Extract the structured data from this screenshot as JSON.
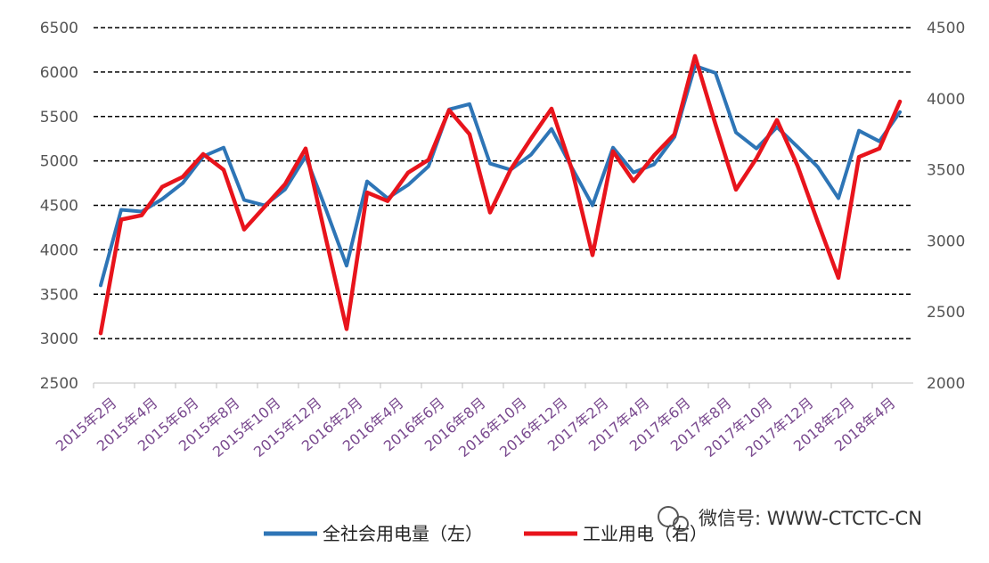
{
  "chart_data": {
    "type": "line",
    "categories": [
      "2015年2月",
      "2015年3月",
      "2015年4月",
      "2015年5月",
      "2015年6月",
      "2015年7月",
      "2015年8月",
      "2015年9月",
      "2015年10月",
      "2015年11月",
      "2015年12月",
      "2016年1月",
      "2016年2月",
      "2016年3月",
      "2016年4月",
      "2016年5月",
      "2016年6月",
      "2016年7月",
      "2016年8月",
      "2016年9月",
      "2016年10月",
      "2016年11月",
      "2016年12月",
      "2017年1月",
      "2017年2月",
      "2017年3月",
      "2017年4月",
      "2017年5月",
      "2017年6月",
      "2017年7月",
      "2017年8月",
      "2017年9月",
      "2017年10月",
      "2017年11月",
      "2017年12月",
      "2018年1月",
      "2018年2月",
      "2018年3月",
      "2018年4月",
      "2018年5月"
    ],
    "x_tick_labels": [
      "2015年2月",
      "2015年4月",
      "2015年6月",
      "2015年8月",
      "2015年10月",
      "2015年12月",
      "2016年2月",
      "2016年4月",
      "2016年6月",
      "2016年8月",
      "2016年10月",
      "2016年12月",
      "2017年2月",
      "2017年4月",
      "2017年6月",
      "2017年8月",
      "2017年10月",
      "2017年12月",
      "2018年2月",
      "2018年4月"
    ],
    "series": [
      {
        "name": "全社会用电量（左）",
        "axis": "left",
        "color": "#2e75b6",
        "values": [
          3600,
          4450,
          4430,
          4570,
          4750,
          5050,
          5150,
          4560,
          4500,
          4680,
          5050,
          4450,
          3820,
          4770,
          4580,
          4730,
          4940,
          5580,
          5640,
          4970,
          4900,
          5070,
          5360,
          4920,
          4500,
          5150,
          4870,
          4960,
          5270,
          6070,
          5990,
          5320,
          5140,
          5380,
          5160,
          4930,
          4580,
          5340,
          5220,
          5550
        ]
      },
      {
        "name": "工业用电（右）",
        "axis": "right",
        "color": "#e8141c",
        "values": [
          2350,
          3150,
          3180,
          3380,
          3450,
          3610,
          3500,
          3080,
          3240,
          3400,
          3650,
          3010,
          2380,
          3340,
          3280,
          3480,
          3570,
          3920,
          3750,
          3200,
          3500,
          3720,
          3930,
          3500,
          2900,
          3630,
          3420,
          3600,
          3750,
          4300,
          3820,
          3360,
          3580,
          3850,
          3530,
          3130,
          2740,
          3590,
          3650,
          3980
        ]
      }
    ],
    "y_left": {
      "min": 2500,
      "max": 6500,
      "ticks": [
        "2500",
        "3000",
        "3500",
        "4000",
        "4500",
        "5000",
        "5500",
        "6000",
        "6500"
      ]
    },
    "y_right": {
      "min": 2000,
      "max": 4500,
      "ticks": [
        "2000",
        "2500",
        "3000",
        "3500",
        "4000",
        "4500"
      ]
    },
    "grid": true,
    "legend_position": "bottom"
  },
  "watermark": "微信号: WWW-CTCTC-CN"
}
